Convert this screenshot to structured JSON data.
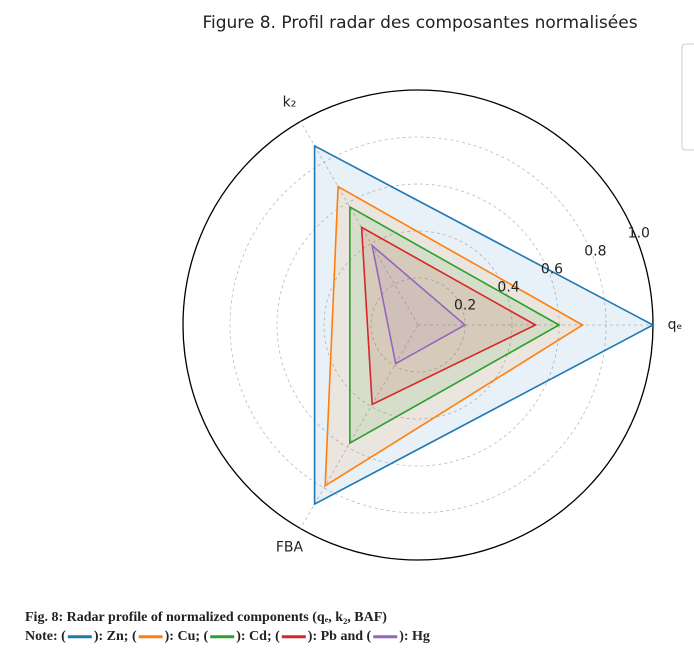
{
  "chart_data": {
    "type": "radar",
    "title": "Figure 8. Profil radar des composantes normalisées",
    "categories": [
      "qₑ",
      "k₂",
      "FBA"
    ],
    "ylim": [
      0,
      1.0
    ],
    "yticks": [
      0.2,
      0.4,
      0.6,
      0.8,
      {
        "value": 1.0,
        "label": "1.0"
      }
    ],
    "grid": true,
    "series": [
      {
        "name": "Zn",
        "color": "#1f77b4",
        "values": [
          1.0,
          0.88,
          0.88
        ]
      },
      {
        "name": "Cu",
        "color": "#ff7f0e",
        "values": [
          0.7,
          0.68,
          0.79
        ]
      },
      {
        "name": "Cd",
        "color": "#2ca02c",
        "values": [
          0.6,
          0.58,
          0.58
        ]
      },
      {
        "name": "Pb",
        "color": "#d62728",
        "values": [
          0.5,
          0.48,
          0.39
        ]
      },
      {
        "name": "Hg",
        "color": "#9467bd",
        "values": [
          0.2,
          0.39,
          0.19
        ]
      }
    ]
  },
  "caption": {
    "text": "Fig. 8: Radar profile of normalized components (qₑ, k₂, BAF)",
    "note_label": "Note:",
    "conjunction": "and"
  }
}
